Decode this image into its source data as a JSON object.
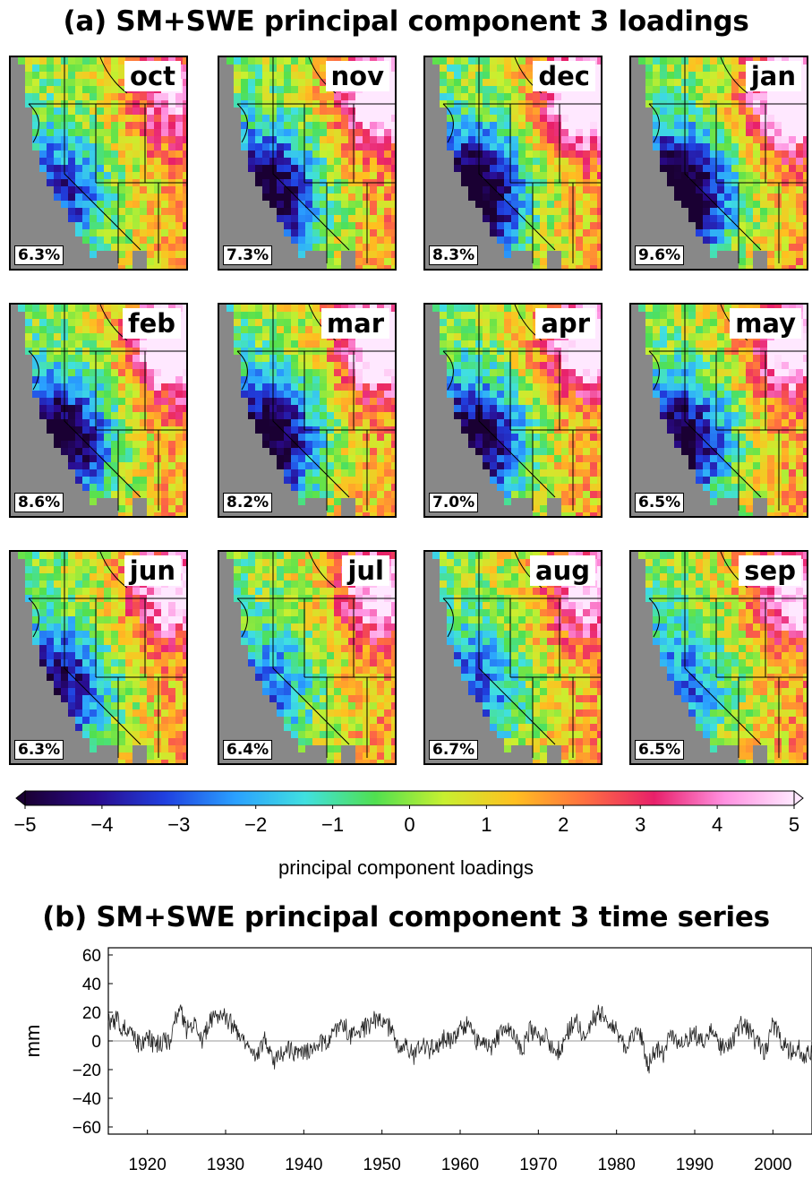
{
  "panel_a": {
    "title": "(a) SM+SWE principal component 3 loadings",
    "maps": [
      {
        "month": "oct",
        "variance": "6.3%"
      },
      {
        "month": "nov",
        "variance": "7.3%"
      },
      {
        "month": "dec",
        "variance": "8.3%"
      },
      {
        "month": "jan",
        "variance": "9.6%"
      },
      {
        "month": "feb",
        "variance": "8.6%"
      },
      {
        "month": "mar",
        "variance": "8.2%"
      },
      {
        "month": "apr",
        "variance": "7.0%"
      },
      {
        "month": "may",
        "variance": "6.5%"
      },
      {
        "month": "jun",
        "variance": "6.3%"
      },
      {
        "month": "jul",
        "variance": "6.4%"
      },
      {
        "month": "aug",
        "variance": "6.7%"
      },
      {
        "month": "sep",
        "variance": "6.5%"
      }
    ],
    "colorbar": {
      "label": "principal component loadings",
      "ticks": [
        "-5",
        "-4",
        "-3",
        "-2",
        "-1",
        "0",
        "1",
        "2",
        "3",
        "4",
        "5"
      ],
      "range": [
        -5,
        5
      ],
      "colors": [
        "#1a0033",
        "#2a0a8c",
        "#2040e0",
        "#2aa0ff",
        "#40e0e0",
        "#50e050",
        "#c8f030",
        "#ffc020",
        "#ff7040",
        "#e8206a",
        "#ff90e0",
        "#ffe8ff"
      ]
    },
    "colors": {
      "ocean": "#888888",
      "state_border": "#000000"
    }
  },
  "panel_b": {
    "title": "(b) SM+SWE principal component 3 time series",
    "ylabel": "mm"
  },
  "chart_data": {
    "type": "line",
    "xlim": [
      1915,
      2005
    ],
    "ylim": [
      -65,
      65
    ],
    "yticks": [
      60,
      40,
      20,
      0,
      -20,
      -40,
      -60
    ],
    "xticks": [
      1920,
      1930,
      1940,
      1950,
      1960,
      1970,
      1980,
      1990,
      2000
    ],
    "zero_line": true,
    "series": [
      {
        "x": [
          1915,
          1916,
          1917,
          1918,
          1919,
          1920,
          1921,
          1922,
          1923,
          1924,
          1925,
          1926,
          1927,
          1928,
          1929,
          1930,
          1931,
          1932,
          1933,
          1934,
          1935,
          1936,
          1937,
          1938,
          1939,
          1940,
          1941,
          1942,
          1943,
          1944,
          1945,
          1946,
          1947,
          1948,
          1949,
          1950,
          1951,
          1952,
          1953,
          1954,
          1955,
          1956,
          1957,
          1958,
          1959,
          1960,
          1961,
          1962,
          1963,
          1964,
          1965,
          1966,
          1967,
          1968,
          1969,
          1970,
          1971,
          1972,
          1973,
          1974,
          1975,
          1976,
          1977,
          1978,
          1979,
          1980,
          1981,
          1982,
          1983,
          1984,
          1985,
          1986,
          1987,
          1988,
          1989,
          1990,
          1991,
          1992,
          1993,
          1994,
          1995,
          1996,
          1997,
          1998,
          1999,
          2000,
          2001,
          2002,
          2003,
          2004,
          2005
        ],
        "y": [
          12,
          15,
          8,
          10,
          -4,
          3,
          -3,
          0,
          -2,
          26,
          8,
          12,
          -3,
          14,
          18,
          16,
          10,
          4,
          -2,
          -12,
          0,
          -14,
          -11,
          -6,
          -10,
          -9,
          -6,
          -2,
          1,
          5,
          12,
          4,
          5,
          10,
          14,
          12,
          9,
          -5,
          1,
          -12,
          -4,
          -6,
          -3,
          2,
          -2,
          8,
          13,
          0,
          2,
          -7,
          5,
          7,
          1,
          -6,
          8,
          2,
          7,
          -10,
          -3,
          9,
          13,
          0,
          15,
          20,
          15,
          9,
          -4,
          2,
          5,
          -18,
          -6,
          -10,
          5,
          -1,
          2,
          5,
          -2,
          9,
          -2,
          -6,
          2,
          12,
          6,
          -2,
          -7,
          12,
          0,
          -8,
          -4,
          -10,
          -10
        ]
      }
    ]
  }
}
